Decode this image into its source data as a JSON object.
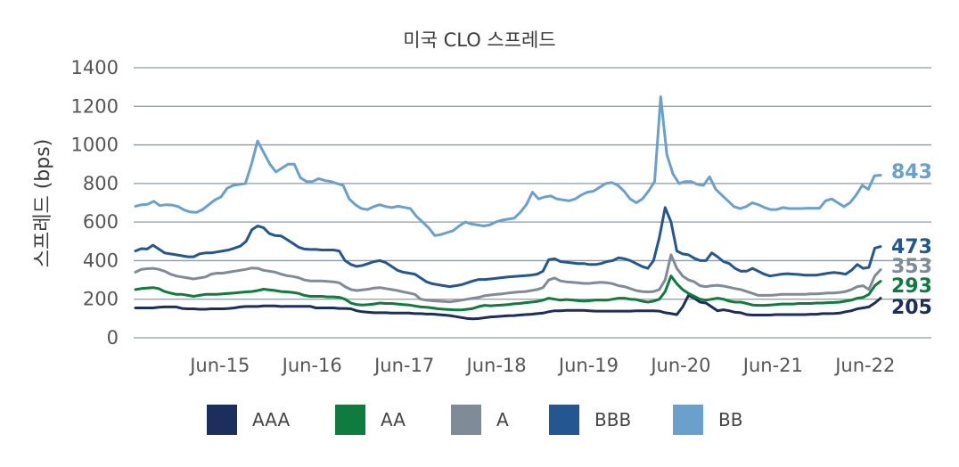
{
  "chart_data": {
    "type": "line",
    "title": "미국 CLO 스프레드",
    "ylabel": "스프레드 (bps)",
    "xlabel": "",
    "ylim": [
      0,
      1400
    ],
    "yticks": [
      0,
      200,
      400,
      600,
      800,
      1000,
      1200,
      1400
    ],
    "xtick_labels": [
      "Jun-15",
      "Jun-16",
      "Jun-17",
      "Jun-18",
      "Jun-19",
      "Jun-20",
      "Jun-21",
      "Jun-22"
    ],
    "grid": true,
    "legend_position": "bottom",
    "x_start": "2014-07",
    "x_end": "2022-08",
    "series": [
      {
        "name": "AAA",
        "color": "#1c2f5c",
        "end_label": "205",
        "values": [
          155,
          155,
          155,
          155,
          158,
          160,
          160,
          160,
          152,
          150,
          150,
          148,
          148,
          150,
          150,
          150,
          152,
          155,
          160,
          162,
          162,
          162,
          165,
          165,
          165,
          162,
          163,
          163,
          163,
          163,
          163,
          155,
          155,
          155,
          155,
          152,
          152,
          150,
          140,
          135,
          132,
          130,
          130,
          130,
          128,
          128,
          128,
          128,
          125,
          125,
          123,
          123,
          120,
          118,
          115,
          110,
          105,
          100,
          98,
          100,
          104,
          108,
          110,
          112,
          114,
          115,
          118,
          120,
          122,
          125,
          128,
          135,
          140,
          140,
          142,
          142,
          142,
          142,
          140,
          138,
          138,
          138,
          138,
          138,
          138,
          138,
          140,
          140,
          140,
          140,
          138,
          130,
          125,
          120,
          160,
          220,
          205,
          185,
          180,
          160,
          140,
          145,
          140,
          132,
          130,
          120,
          118,
          118,
          118,
          118,
          120,
          120,
          120,
          120,
          120,
          120,
          122,
          122,
          125,
          125,
          126,
          128,
          135,
          140,
          150,
          155,
          160,
          180,
          205
        ]
      },
      {
        "name": "AA",
        "color": "#0f7b3e",
        "end_label": "293",
        "values": [
          250,
          255,
          258,
          260,
          255,
          240,
          232,
          225,
          225,
          220,
          215,
          220,
          225,
          225,
          225,
          228,
          230,
          232,
          235,
          238,
          240,
          245,
          252,
          248,
          245,
          240,
          238,
          235,
          230,
          220,
          215,
          215,
          215,
          212,
          212,
          210,
          200,
          180,
          172,
          170,
          172,
          175,
          180,
          178,
          178,
          175,
          172,
          170,
          165,
          160,
          158,
          155,
          150,
          148,
          146,
          144,
          144,
          148,
          152,
          162,
          168,
          166,
          168,
          170,
          172,
          176,
          178,
          182,
          185,
          188,
          195,
          205,
          200,
          195,
          198,
          196,
          192,
          190,
          192,
          195,
          195,
          195,
          200,
          205,
          205,
          200,
          198,
          190,
          185,
          190,
          200,
          240,
          320,
          280,
          250,
          230,
          215,
          200,
          195,
          200,
          205,
          200,
          190,
          185,
          185,
          178,
          170,
          168,
          168,
          170,
          172,
          175,
          175,
          175,
          178,
          178,
          178,
          180,
          180,
          182,
          183,
          185,
          190,
          195,
          205,
          210,
          225,
          270,
          293
        ]
      },
      {
        "name": "A",
        "color": "#7f8b96",
        "end_label": "353",
        "values": [
          340,
          355,
          358,
          360,
          355,
          345,
          330,
          320,
          315,
          310,
          305,
          310,
          315,
          330,
          335,
          335,
          340,
          345,
          350,
          355,
          362,
          360,
          350,
          345,
          340,
          330,
          322,
          318,
          312,
          300,
          295,
          295,
          295,
          292,
          290,
          285,
          265,
          250,
          245,
          248,
          252,
          258,
          260,
          255,
          250,
          245,
          238,
          232,
          225,
          200,
          195,
          192,
          190,
          188,
          186,
          190,
          195,
          200,
          205,
          210,
          218,
          222,
          225,
          228,
          232,
          235,
          238,
          240,
          245,
          250,
          260,
          300,
          310,
          295,
          290,
          288,
          285,
          282,
          282,
          285,
          288,
          285,
          280,
          270,
          265,
          255,
          245,
          240,
          238,
          240,
          250,
          300,
          430,
          360,
          320,
          300,
          290,
          270,
          265,
          270,
          272,
          268,
          262,
          255,
          250,
          240,
          230,
          220,
          220,
          220,
          222,
          225,
          225,
          225,
          225,
          225,
          228,
          228,
          230,
          232,
          232,
          235,
          240,
          250,
          265,
          270,
          250,
          320,
          353
        ]
      },
      {
        "name": "BBB",
        "color": "#24578f",
        "end_label": "473",
        "values": [
          450,
          462,
          460,
          480,
          460,
          440,
          435,
          430,
          425,
          420,
          420,
          435,
          440,
          440,
          445,
          450,
          455,
          465,
          475,
          500,
          560,
          580,
          570,
          540,
          530,
          528,
          510,
          490,
          470,
          460,
          458,
          458,
          455,
          455,
          455,
          450,
          400,
          380,
          370,
          375,
          385,
          395,
          400,
          390,
          370,
          350,
          340,
          335,
          330,
          310,
          290,
          280,
          275,
          270,
          265,
          270,
          275,
          285,
          295,
          302,
          302,
          305,
          308,
          312,
          315,
          318,
          320,
          322,
          325,
          330,
          345,
          405,
          410,
          395,
          392,
          388,
          385,
          385,
          380,
          380,
          385,
          395,
          400,
          415,
          410,
          400,
          385,
          370,
          360,
          400,
          520,
          675,
          600,
          450,
          435,
          430,
          412,
          400,
          400,
          440,
          420,
          395,
          385,
          360,
          345,
          345,
          360,
          345,
          330,
          320,
          325,
          330,
          332,
          330,
          328,
          325,
          325,
          325,
          330,
          335,
          338,
          335,
          330,
          350,
          380,
          360,
          365,
          465,
          473
        ]
      },
      {
        "name": "BB",
        "color": "#6ba0cc",
        "end_label": "843",
        "values": [
          682,
          690,
          692,
          708,
          685,
          690,
          688,
          680,
          662,
          652,
          650,
          665,
          690,
          715,
          730,
          775,
          790,
          795,
          800,
          900,
          1020,
          960,
          900,
          860,
          880,
          900,
          900,
          830,
          810,
          810,
          825,
          815,
          810,
          800,
          790,
          720,
          690,
          670,
          665,
          680,
          690,
          680,
          675,
          682,
          676,
          670,
          630,
          600,
          570,
          530,
          535,
          545,
          555,
          580,
          600,
          590,
          585,
          580,
          585,
          600,
          610,
          615,
          620,
          650,
          690,
          755,
          720,
          730,
          735,
          720,
          715,
          710,
          720,
          740,
          755,
          760,
          780,
          800,
          805,
          790,
          760,
          720,
          700,
          720,
          760,
          810,
          1250,
          950,
          850,
          800,
          810,
          810,
          795,
          790,
          835,
          770,
          740,
          710,
          680,
          670,
          680,
          700,
          690,
          675,
          665,
          665,
          675,
          670,
          670,
          670,
          672,
          672,
          672,
          710,
          720,
          700,
          680,
          700,
          740,
          790,
          770,
          840,
          843
        ]
      }
    ]
  }
}
